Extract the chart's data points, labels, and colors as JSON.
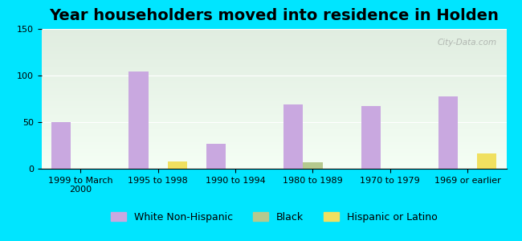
{
  "title": "Year householders moved into residence in Holden",
  "categories": [
    "1999 to March\n2000",
    "1995 to 1998",
    "1990 to 1994",
    "1980 to 1989",
    "1970 to 1979",
    "1969 or earlier"
  ],
  "white_non_hispanic": [
    50,
    104,
    27,
    69,
    67,
    78
  ],
  "black": [
    0,
    0,
    0,
    7,
    0,
    0
  ],
  "hispanic_or_latino": [
    0,
    8,
    0,
    0,
    0,
    16
  ],
  "white_color": "#c9a8e0",
  "black_color": "#b5c98e",
  "hispanic_color": "#f0e060",
  "background_outer": "#00e5ff",
  "ylim": [
    0,
    150
  ],
  "yticks": [
    0,
    50,
    100,
    150
  ],
  "bar_width": 0.25,
  "title_fontsize": 14,
  "tick_fontsize": 8,
  "legend_fontsize": 9,
  "watermark": "City-Data.com"
}
